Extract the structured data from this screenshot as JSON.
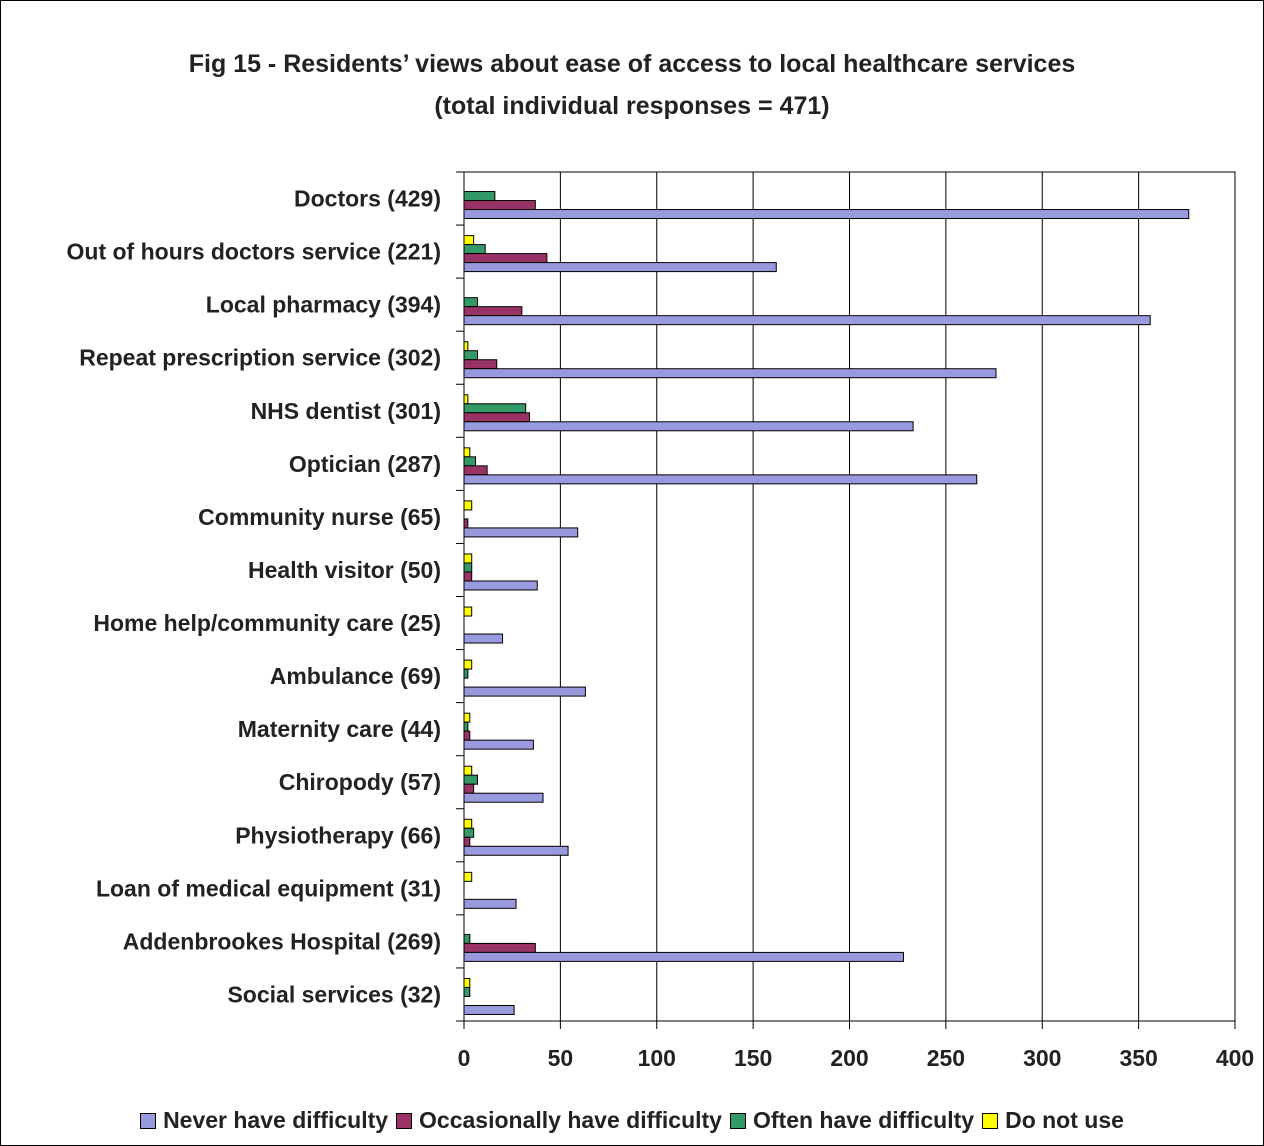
{
  "chart_data": {
    "type": "bar",
    "orientation": "horizontal",
    "title": "Fig 15 - Residents’ views about ease of access to local healthcare services",
    "subtitle": "(total individual responses = 471)",
    "categories": [
      "Doctors (429)",
      "Out of hours doctors service (221)",
      "Local pharmacy (394)",
      "Repeat prescription service (302)",
      "NHS dentist (301)",
      "Optician (287)",
      "Community nurse (65)",
      "Health visitor (50)",
      "Home help/community care (25)",
      "Ambulance (69)",
      "Maternity care (44)",
      "Chiropody (57)",
      "Physiotherapy (66)",
      "Loan of medical equipment (31)",
      "Addenbrookes Hospital (269)",
      "Social services (32)"
    ],
    "series": [
      {
        "name": "Never have difficulty",
        "color": "#9999dd",
        "values": [
          376,
          162,
          356,
          276,
          233,
          266,
          59,
          38,
          20,
          63,
          36,
          41,
          54,
          27,
          228,
          26
        ]
      },
      {
        "name": "Occasionally have difficulty",
        "color": "#993366",
        "values": [
          37,
          43,
          30,
          17,
          34,
          12,
          2,
          4,
          0,
          0,
          3,
          5,
          3,
          0,
          37,
          0
        ]
      },
      {
        "name": "Often have difficulty",
        "color": "#339966",
        "values": [
          16,
          11,
          7,
          7,
          32,
          6,
          0,
          4,
          0,
          2,
          2,
          7,
          5,
          0,
          3,
          3
        ]
      },
      {
        "name": "Do not use",
        "color": "#ffff00",
        "values": [
          0,
          5,
          0,
          2,
          2,
          3,
          4,
          4,
          4,
          4,
          3,
          4,
          4,
          4,
          0,
          3
        ]
      }
    ],
    "xlim": [
      0,
      400
    ],
    "xticks": [
      0,
      50,
      100,
      150,
      200,
      250,
      300,
      350,
      400
    ],
    "grid": true,
    "legend_position": "bottom"
  }
}
